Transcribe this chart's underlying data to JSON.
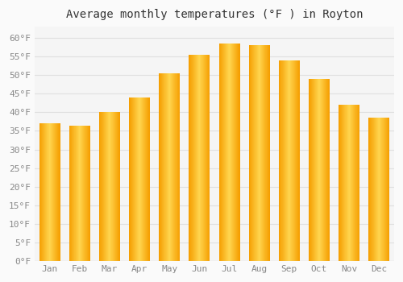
{
  "title": "Average monthly temperatures (°F ) in Royton",
  "months": [
    "Jan",
    "Feb",
    "Mar",
    "Apr",
    "May",
    "Jun",
    "Jul",
    "Aug",
    "Sep",
    "Oct",
    "Nov",
    "Dec"
  ],
  "values": [
    37,
    36.5,
    40,
    44,
    50.5,
    55.5,
    58.5,
    58,
    54,
    49,
    42,
    38.5
  ],
  "bar_color_center": "#FFD54F",
  "bar_color_edge": "#F59E00",
  "background_color": "#FAFAFA",
  "plot_bg_color": "#F5F5F5",
  "grid_color": "#E0E0E0",
  "ylim": [
    0,
    63
  ],
  "yticks": [
    0,
    5,
    10,
    15,
    20,
    25,
    30,
    35,
    40,
    45,
    50,
    55,
    60
  ],
  "ylabel_suffix": "°F",
  "title_fontsize": 10,
  "tick_fontsize": 8,
  "tick_label_color": "#888888",
  "bar_width": 0.7
}
